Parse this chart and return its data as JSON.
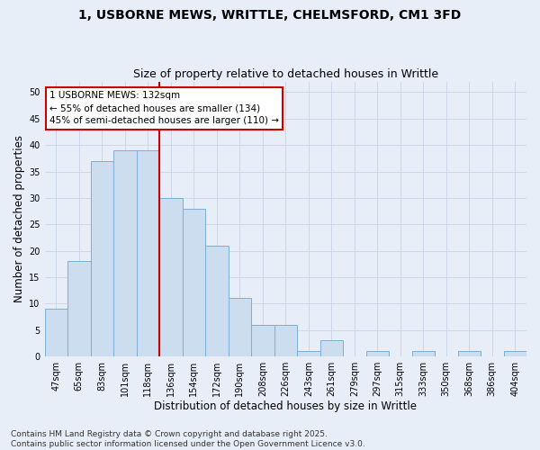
{
  "title_line1": "1, USBORNE MEWS, WRITTLE, CHELMSFORD, CM1 3FD",
  "title_line2": "Size of property relative to detached houses in Writtle",
  "xlabel": "Distribution of detached houses by size in Writtle",
  "ylabel": "Number of detached properties",
  "categories": [
    "47sqm",
    "65sqm",
    "83sqm",
    "101sqm",
    "118sqm",
    "136sqm",
    "154sqm",
    "172sqm",
    "190sqm",
    "208sqm",
    "226sqm",
    "243sqm",
    "261sqm",
    "279sqm",
    "297sqm",
    "315sqm",
    "333sqm",
    "350sqm",
    "368sqm",
    "386sqm",
    "404sqm"
  ],
  "values": [
    9,
    18,
    37,
    39,
    39,
    30,
    28,
    21,
    11,
    6,
    6,
    1,
    3,
    0,
    1,
    0,
    1,
    0,
    1,
    0,
    1
  ],
  "bar_color": "#cdddf0",
  "bar_edge_color": "#7bafd4",
  "vline_x": 5,
  "vline_color": "#cc0000",
  "annotation_text": "1 USBORNE MEWS: 132sqm\n← 55% of detached houses are smaller (134)\n45% of semi-detached houses are larger (110) →",
  "annotation_box_color": "#ffffff",
  "annotation_box_edge": "#cc0000",
  "ylim": [
    0,
    52
  ],
  "yticks": [
    0,
    5,
    10,
    15,
    20,
    25,
    30,
    35,
    40,
    45,
    50
  ],
  "grid_color": "#ccd8ea",
  "background_color": "#e8eef8",
  "footer_text": "Contains HM Land Registry data © Crown copyright and database right 2025.\nContains public sector information licensed under the Open Government Licence v3.0.",
  "title_fontsize": 10,
  "subtitle_fontsize": 9,
  "axis_label_fontsize": 8.5,
  "tick_fontsize": 7,
  "annotation_fontsize": 7.5,
  "footer_fontsize": 6.5
}
